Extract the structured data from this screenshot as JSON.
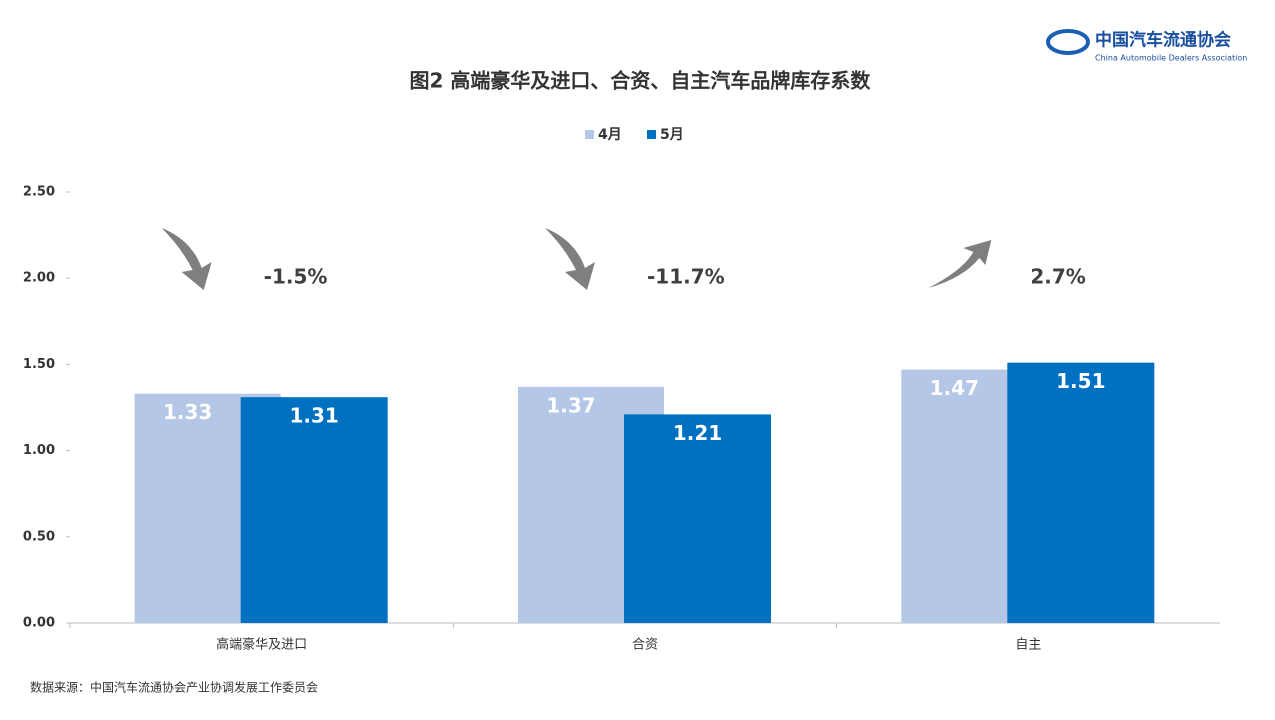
{
  "chart_data": {
    "type": "bar",
    "title": "图2  高端豪华及进口、合资、自主汽车品牌库存系数",
    "categories": [
      "高端豪华及进口",
      "合资",
      "自主"
    ],
    "series": [
      {
        "name": "4月",
        "color": "#b4c7e7",
        "values": [
          1.33,
          1.37,
          1.47
        ]
      },
      {
        "name": "5月",
        "color": "#0070c0",
        "values": [
          1.31,
          1.21,
          1.51
        ]
      }
    ],
    "ylim": [
      0,
      2.5
    ],
    "yticks": [
      {
        "value": 0,
        "label": "0.00"
      },
      {
        "value": 0.5,
        "label": "0.50"
      },
      {
        "value": 1,
        "label": "1.00"
      },
      {
        "value": 1.5,
        "label": "1.50"
      },
      {
        "value": 2,
        "label": "2.00"
      },
      {
        "value": 2.5,
        "label": "2.50"
      }
    ],
    "annotations": [
      "-1.5%",
      "-11.7%",
      "2.7%"
    ],
    "legend": "top",
    "source": "数据来源：中国汽车流通协会产业协调发展工作委员会"
  },
  "logo": {
    "name": "中国汽车流通协会",
    "subtitle": "China Automobile Dealers Association"
  }
}
